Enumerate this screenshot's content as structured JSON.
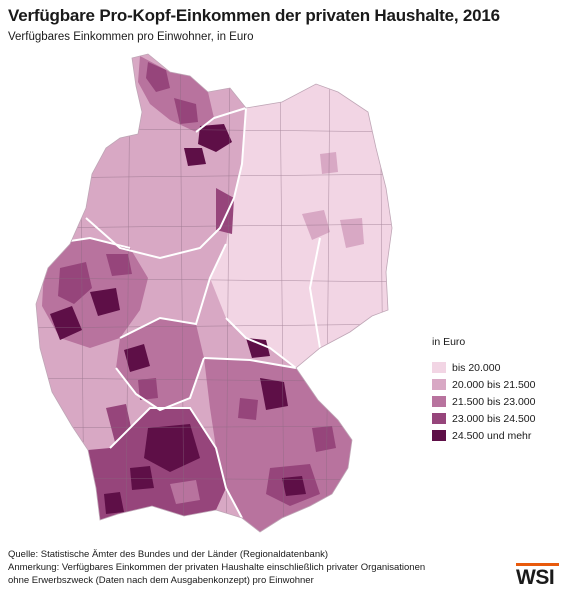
{
  "header": {
    "title": "Verfügbare Pro-Kopf-Einkommen der privaten Haushalte, 2016",
    "subtitle": "Verfügbares Einkommen pro Einwohner, in Euro"
  },
  "legend": {
    "title": "in Euro",
    "items": [
      {
        "label": "bis 20.000",
        "color": "#f2d5e4"
      },
      {
        "label": "20.000 bis 21.500",
        "color": "#d8a8c4"
      },
      {
        "label": "21.500 bis 23.000",
        "color": "#b8739e"
      },
      {
        "label": "23.000 bis 24.500",
        "color": "#96457b"
      },
      {
        "label": "24.500 und mehr",
        "color": "#5e0f47"
      }
    ]
  },
  "footer": {
    "source": "Quelle: Statistische Ämter des Bundes und der Länder (Regionaldatenbank)",
    "note_line1": "Anmerkung: Verfügbares Einkommen der privaten Haushalte einschließlich privater Organisationen",
    "note_line2": "ohne Erwerbszweck (Daten nach dem Ausgabenkonzept) pro Einwohner"
  },
  "logo": {
    "text": "WSI",
    "accent_color": "#e85a0c"
  }
}
